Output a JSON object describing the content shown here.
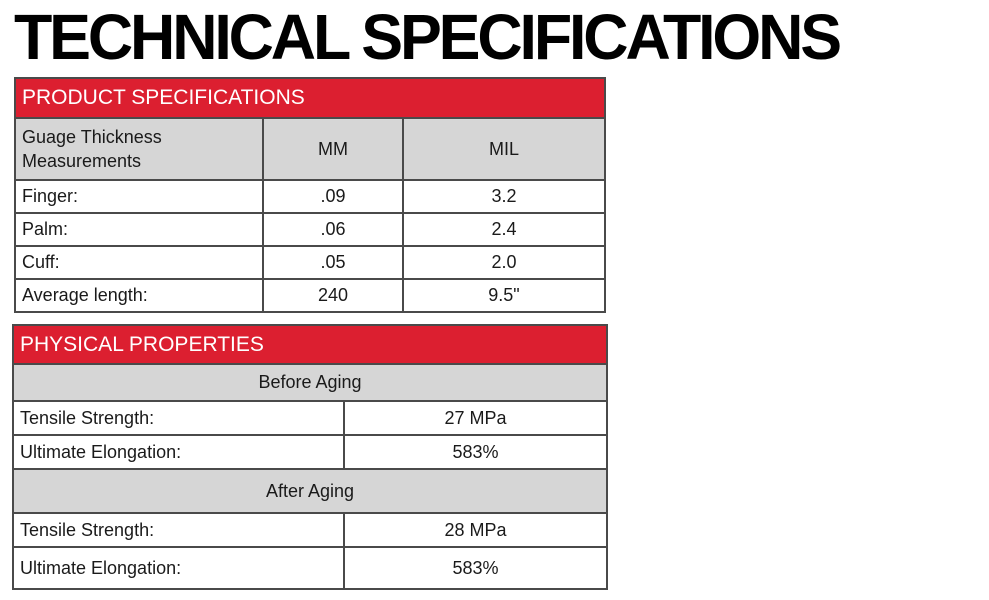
{
  "title": "TECHNICAL SPECIFICATIONS",
  "product": {
    "header": "PRODUCT SPECIFICATIONS",
    "col1_line1": "Guage Thickness",
    "col1_line2": "Measurements",
    "col2": "MM",
    "col3": "MIL",
    "rows": [
      {
        "label": "Finger:",
        "mm": ".09",
        "mil": "3.2"
      },
      {
        "label": "Palm:",
        "mm": ".06",
        "mil": "2.4"
      },
      {
        "label": "Cuff:",
        "mm": ".05",
        "mil": "2.0"
      },
      {
        "label": "Average length:",
        "mm": "240",
        "mil": "9.5\""
      }
    ]
  },
  "physical": {
    "header": "PHYSICAL PROPERTIES",
    "before": {
      "label": "Before Aging",
      "rows": [
        {
          "label": "Tensile Strength:",
          "value": "27 MPa"
        },
        {
          "label": "Ultimate Elongation:",
          "value": "583%"
        }
      ]
    },
    "after": {
      "label": "After Aging",
      "rows": [
        {
          "label": "Tensile Strength:",
          "value": "28 MPa"
        },
        {
          "label": "Ultimate Elongation:",
          "value": "583%"
        }
      ]
    }
  },
  "colors": {
    "header_red": "#dc1f30",
    "header_gray": "#d6d6d6"
  }
}
